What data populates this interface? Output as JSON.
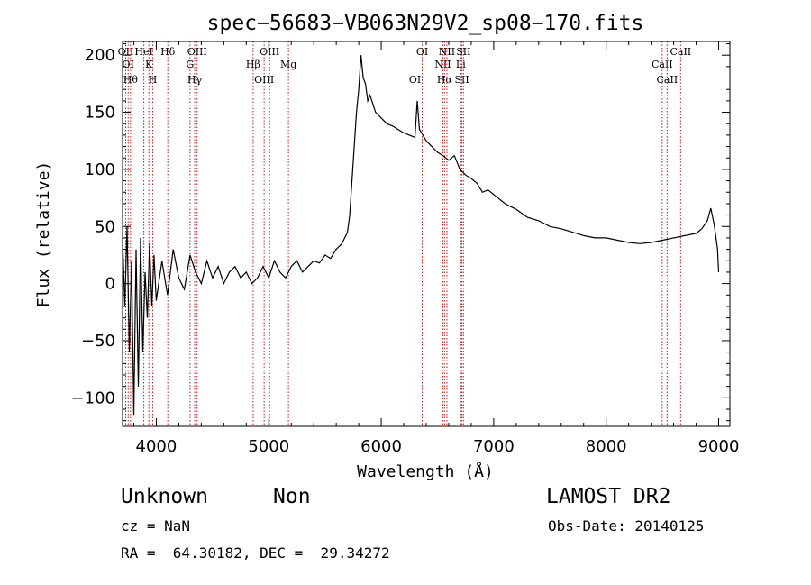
{
  "chart_data": {
    "type": "line",
    "title": "spec−56683−VB063N29V2_sp08−170.fits",
    "xlabel": "Wavelength (Å)",
    "ylabel": "Flux (relative)",
    "xlim": [
      3700,
      9100
    ],
    "ylim": [
      -125,
      212
    ],
    "x_ticks": [
      4000,
      5000,
      6000,
      7000,
      8000,
      9000
    ],
    "x_tick_labels": [
      "4000",
      "5000",
      "6000",
      "7000",
      "8000",
      "9000"
    ],
    "y_ticks": [
      -100,
      -50,
      0,
      50,
      100,
      150,
      200
    ],
    "y_tick_labels": [
      "−100",
      "−50",
      "0",
      "50",
      "100",
      "150",
      "200"
    ],
    "grid": false,
    "line_color": "#000000",
    "marker_color": "#b22222",
    "series": [
      {
        "x": [
          3700,
          3720,
          3740,
          3760,
          3780,
          3800,
          3820,
          3840,
          3860,
          3880,
          3900,
          3920,
          3940,
          3960,
          3980,
          4000,
          4050,
          4100,
          4150,
          4200,
          4250,
          4300,
          4350,
          4400,
          4450,
          4500,
          4550,
          4600,
          4650,
          4700,
          4750,
          4800,
          4850,
          4900,
          4950,
          5000,
          5050,
          5100,
          5150,
          5200,
          5250,
          5300,
          5350,
          5400,
          5450,
          5500,
          5550,
          5600,
          5650,
          5700,
          5720,
          5740,
          5760,
          5780,
          5800,
          5820,
          5840,
          5860,
          5880,
          5900,
          5950,
          6000,
          6050,
          6100,
          6150,
          6200,
          6250,
          6300,
          6320,
          6340,
          6400,
          6450,
          6500,
          6550,
          6600,
          6650,
          6700,
          6750,
          6800,
          6850,
          6900,
          6950,
          7000,
          7100,
          7200,
          7300,
          7400,
          7500,
          7600,
          7700,
          7800,
          7900,
          8000,
          8100,
          8200,
          8300,
          8400,
          8500,
          8600,
          8700,
          8800,
          8850,
          8900,
          8930,
          8960,
          8990,
          9000
        ],
        "y": [
          40,
          -20,
          50,
          -60,
          20,
          -115,
          30,
          -90,
          40,
          -60,
          10,
          -30,
          35,
          -20,
          25,
          -15,
          20,
          -10,
          30,
          5,
          -5,
          25,
          10,
          0,
          20,
          5,
          15,
          0,
          10,
          15,
          5,
          10,
          0,
          5,
          15,
          5,
          20,
          10,
          5,
          15,
          20,
          10,
          15,
          20,
          18,
          25,
          22,
          30,
          35,
          45,
          60,
          90,
          120,
          150,
          170,
          200,
          180,
          175,
          160,
          165,
          150,
          145,
          140,
          138,
          135,
          132,
          130,
          128,
          160,
          135,
          125,
          120,
          115,
          112,
          108,
          112,
          100,
          95,
          92,
          88,
          80,
          82,
          78,
          70,
          65,
          58,
          55,
          50,
          48,
          45,
          42,
          40,
          40,
          38,
          36,
          35,
          36,
          38,
          40,
          42,
          44,
          48,
          55,
          66,
          52,
          30,
          10
        ]
      }
    ],
    "lines": [
      {
        "x": 3728,
        "label": "OII"
      },
      {
        "x": 3750,
        "label": "OI"
      },
      {
        "x": 3771,
        "label": "Hθ"
      },
      {
        "x": 3889,
        "label": "HeI"
      },
      {
        "x": 3934,
        "label": "K"
      },
      {
        "x": 3969,
        "label": "H"
      },
      {
        "x": 4102,
        "label": "Hδ"
      },
      {
        "x": 4300,
        "label": "G"
      },
      {
        "x": 4341,
        "label": "Hγ"
      },
      {
        "x": 4363,
        "label": "OIII"
      },
      {
        "x": 4861,
        "label": "Hβ"
      },
      {
        "x": 4959,
        "label": "OIII"
      },
      {
        "x": 5007,
        "label": "OIII"
      },
      {
        "x": 5175,
        "label": "Mg"
      },
      {
        "x": 6300,
        "label": "OI"
      },
      {
        "x": 6364,
        "label": "OI"
      },
      {
        "x": 6548,
        "label": "NII"
      },
      {
        "x": 6563,
        "label": "Hα"
      },
      {
        "x": 6584,
        "label": "NII"
      },
      {
        "x": 6707,
        "label": "Li"
      },
      {
        "x": 6717,
        "label": "SII"
      },
      {
        "x": 6731,
        "label": "SII"
      },
      {
        "x": 8498,
        "label": "CaII"
      },
      {
        "x": 8542,
        "label": "CaII"
      },
      {
        "x": 8662,
        "label": "CaII"
      }
    ]
  },
  "info": {
    "class": "Unknown",
    "subclass": "Non",
    "survey": "LAMOST DR2",
    "cz": "cz = NaN",
    "obs_date": "Obs-Date: 20140125",
    "coords": "RA =  64.30182, DEC =  29.34272"
  }
}
